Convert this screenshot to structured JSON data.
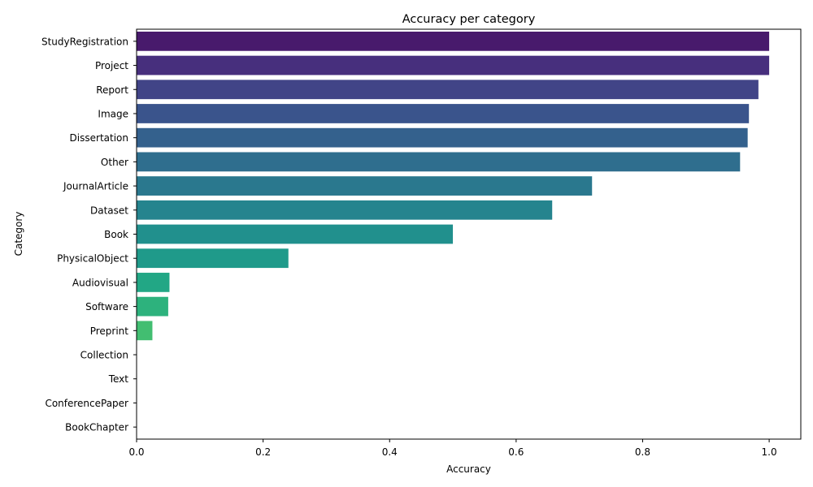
{
  "chart_data": {
    "type": "bar",
    "orientation": "horizontal",
    "title": "Accuracy per category",
    "xlabel": "Accuracy",
    "ylabel": "Category",
    "xlim": [
      0,
      1.05
    ],
    "x_ticks": [
      0.0,
      0.2,
      0.4,
      0.6,
      0.8,
      1.0
    ],
    "x_tick_labels": [
      "0.0",
      "0.2",
      "0.4",
      "0.6",
      "0.8",
      "1.0"
    ],
    "grid": false,
    "colormap": "viridis",
    "categories": [
      "StudyRegistration",
      "Project",
      "Report",
      "Image",
      "Dissertation",
      "Other",
      "JournalArticle",
      "Dataset",
      "Book",
      "PhysicalObject",
      "Audiovisual",
      "Software",
      "Preprint",
      "Collection",
      "Text",
      "ConferencePaper",
      "BookChapter"
    ],
    "values": [
      1.0,
      1.0,
      0.983,
      0.968,
      0.966,
      0.954,
      0.72,
      0.657,
      0.5,
      0.24,
      0.052,
      0.05,
      0.025,
      0.0,
      0.0,
      0.0,
      0.0
    ],
    "colors": [
      "#481a6c",
      "#472f7d",
      "#414487",
      "#3a548c",
      "#34618d",
      "#2f6e8e",
      "#2a788e",
      "#25848e",
      "#21908d",
      "#1f9a8a",
      "#22a785",
      "#2db27d",
      "#42be71",
      "#56c667",
      "#75d054",
      "#95d840",
      "#bade28"
    ]
  }
}
